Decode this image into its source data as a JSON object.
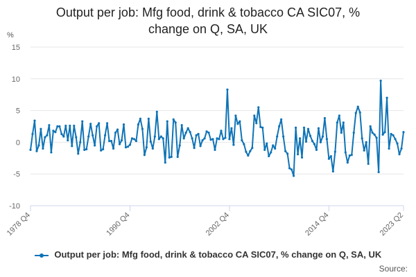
{
  "title_lines": [
    "Output per job: Mfg food, drink & tobacco CA SIC07, %",
    "change on Q, SA, UK"
  ],
  "unit": "%",
  "legend_label": "Output per job: Mfg food, drink & tobacco CA SIC07, % change on Q, SA, UK",
  "source_label": "Source:",
  "colors": {
    "series": "#0f73b6",
    "grid": "#e6e6e6",
    "axis": "#ccd6eb"
  },
  "chart_data": {
    "type": "line",
    "title": "Output per job: Mfg food, drink & tobacco CA SIC07, % change on Q, SA, UK",
    "xlabel": "",
    "ylabel": "%",
    "ylim": [
      -10,
      15
    ],
    "yticks": [
      -10,
      -5,
      0,
      5,
      10,
      15
    ],
    "x_start": "1978 Q4",
    "x_end": "2023 Q2",
    "xticks": [
      "1978 Q4",
      "1990 Q4",
      "2002 Q4",
      "2014 Q4",
      "2023 Q2"
    ],
    "legend_position": "bottom",
    "series": [
      {
        "name": "Output per job: Mfg food, drink & tobacco CA SIC07, % change on Q, SA, UK",
        "values": [
          -1.2,
          1.3,
          3.4,
          -1.4,
          -0.5,
          2.1,
          -1.0,
          0.8,
          1.1,
          2.7,
          -1.6,
          1.8,
          1.6,
          2.5,
          2.5,
          1.3,
          0.9,
          2.6,
          0.3,
          2.6,
          -0.6,
          2.6,
          0.8,
          -1.8,
          0.0,
          3.3,
          -1.2,
          -1.1,
          0.9,
          2.9,
          1.1,
          -0.5,
          2.5,
          3.0,
          -1.3,
          -1.1,
          1.1,
          3.0,
          0.2,
          0.2,
          -1.0,
          1.5,
          2.0,
          -0.3,
          0.3,
          2.8,
          -0.8,
          -0.7,
          -0.4,
          0.6,
          0.5,
          0.2,
          2.8,
          3.7,
          2.1,
          -2.0,
          -0.8,
          3.7,
          0.1,
          -1.0,
          0.9,
          4.8,
          0.5,
          0.9,
          0.6,
          -3.2,
          3.3,
          -2.4,
          -2.3,
          3.6,
          3.1,
          -2.3,
          -0.5,
          2.7,
          0.6,
          1.5,
          2.2,
          1.6,
          0.6,
          -0.9,
          1.1,
          1.3,
          -0.6,
          0.3,
          0.6,
          1.7,
          1.5,
          0.4,
          0.5,
          -1.2,
          0.6,
          0.5,
          1.8,
          0.5,
          0.7,
          8.3,
          0.5,
          2.2,
          -0.4,
          4.2,
          2.9,
          3.3,
          0.3,
          -0.3,
          -1.5,
          -2.1,
          -1.4,
          -0.9,
          4.2,
          3.0,
          5.5,
          2.4,
          2.3,
          -1.2,
          -0.2,
          -2.2,
          -1.6,
          -0.5,
          -1.0,
          0.9,
          2.5,
          3.6,
          0.9,
          -1.4,
          -1.8,
          -4.1,
          -4.3,
          -5.3,
          2.3,
          -1.9,
          0.6,
          -2.4,
          2.3,
          0.1,
          2.1,
          1.0,
          0.2,
          -0.3,
          -1.2,
          2.2,
          0.0,
          0.9,
          3.8,
          0.5,
          -2.6,
          -2.2,
          -4.6,
          -1.5,
          3.1,
          4.2,
          1.5,
          3.1,
          -1.6,
          -3.2,
          -2.1,
          -2.0,
          1.5,
          4.6,
          5.6,
          4.7,
          0.6,
          -1.3,
          0.0,
          -3.4,
          2.5,
          1.5,
          1.2,
          0.7,
          -4.7,
          9.7,
          1.2,
          1.6,
          7.0,
          -1.0,
          1.3,
          1.1,
          0.5,
          -0.2,
          -1.9,
          -1.0,
          1.6
        ]
      }
    ]
  }
}
